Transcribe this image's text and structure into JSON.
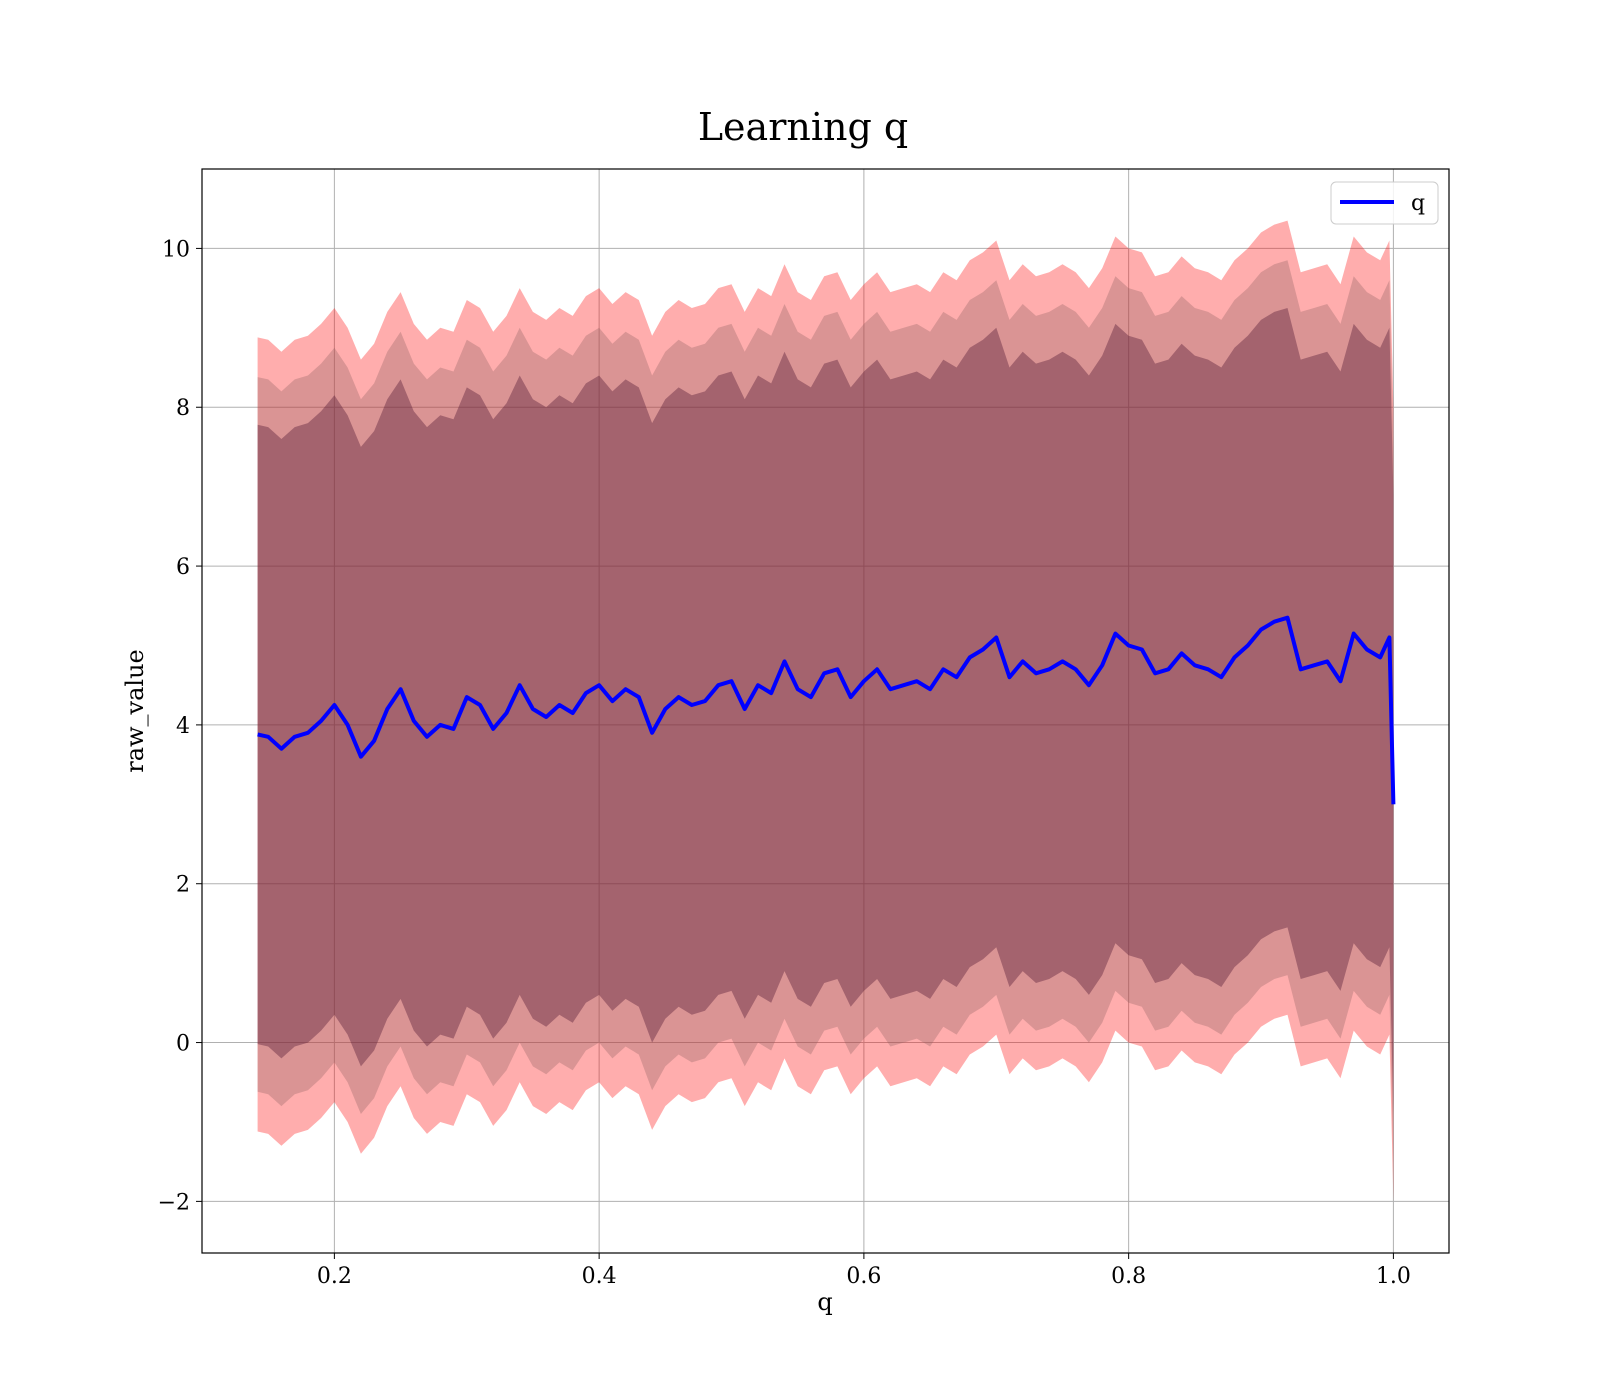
{
  "chart_data": {
    "type": "line",
    "title": "Learning q",
    "xlabel": "q",
    "ylabel": "raw_value",
    "xlim": [
      0.1,
      1.042
    ],
    "ylim": [
      -2.65,
      11.0
    ],
    "grid": true,
    "legend_position": "top-right",
    "x_ticks": [
      0.2,
      0.4,
      0.6,
      0.8,
      1.0
    ],
    "x_tick_labels": [
      "0.2",
      "0.4",
      "0.6",
      "0.8",
      "1.0"
    ],
    "y_ticks": [
      -2,
      0,
      2,
      4,
      6,
      8,
      10
    ],
    "y_tick_labels": [
      "−2",
      "0",
      "2",
      "4",
      "6",
      "8",
      "10"
    ],
    "colors": {
      "line": "#0000ff",
      "band_outer": "#ff0000",
      "band_inner": "#8b6060",
      "band_core": "#5a1f3a"
    },
    "series": [
      {
        "name": "q",
        "x": [
          0.142,
          0.15,
          0.16,
          0.17,
          0.18,
          0.19,
          0.2,
          0.21,
          0.22,
          0.23,
          0.24,
          0.25,
          0.26,
          0.27,
          0.28,
          0.29,
          0.3,
          0.31,
          0.32,
          0.33,
          0.34,
          0.35,
          0.36,
          0.37,
          0.38,
          0.39,
          0.4,
          0.41,
          0.42,
          0.43,
          0.44,
          0.45,
          0.46,
          0.47,
          0.48,
          0.49,
          0.5,
          0.51,
          0.52,
          0.53,
          0.54,
          0.55,
          0.56,
          0.57,
          0.58,
          0.59,
          0.6,
          0.61,
          0.62,
          0.63,
          0.64,
          0.65,
          0.66,
          0.67,
          0.68,
          0.69,
          0.7,
          0.71,
          0.72,
          0.73,
          0.74,
          0.75,
          0.76,
          0.77,
          0.78,
          0.79,
          0.8,
          0.81,
          0.82,
          0.83,
          0.84,
          0.85,
          0.86,
          0.87,
          0.88,
          0.89,
          0.9,
          0.91,
          0.92,
          0.93,
          0.94,
          0.95,
          0.96,
          0.97,
          0.98,
          0.99,
          0.997,
          1.0
        ],
        "y": [
          3.88,
          3.85,
          3.7,
          3.85,
          3.9,
          4.05,
          4.25,
          4.0,
          3.6,
          3.8,
          4.2,
          4.45,
          4.05,
          3.85,
          4.0,
          3.95,
          4.35,
          4.25,
          3.95,
          4.15,
          4.5,
          4.2,
          4.1,
          4.25,
          4.15,
          4.4,
          4.5,
          4.3,
          4.45,
          4.35,
          3.9,
          4.2,
          4.35,
          4.25,
          4.3,
          4.5,
          4.55,
          4.2,
          4.5,
          4.4,
          4.8,
          4.45,
          4.35,
          4.65,
          4.7,
          4.35,
          4.55,
          4.7,
          4.45,
          4.5,
          4.55,
          4.45,
          4.7,
          4.6,
          4.85,
          4.95,
          5.1,
          4.6,
          4.8,
          4.65,
          4.7,
          4.8,
          4.7,
          4.5,
          4.75,
          5.15,
          5.0,
          4.95,
          4.65,
          4.7,
          4.9,
          4.75,
          4.7,
          4.6,
          4.85,
          5.0,
          5.2,
          5.3,
          5.35,
          4.7,
          4.75,
          4.8,
          4.55,
          5.15,
          4.95,
          4.85,
          5.1,
          3.0
        ]
      }
    ],
    "bands": [
      {
        "offset": 5.0,
        "opacity": 0.32
      },
      {
        "offset": 4.5,
        "opacity": 0.32
      },
      {
        "offset": 3.9,
        "opacity": 0.42
      }
    ]
  }
}
